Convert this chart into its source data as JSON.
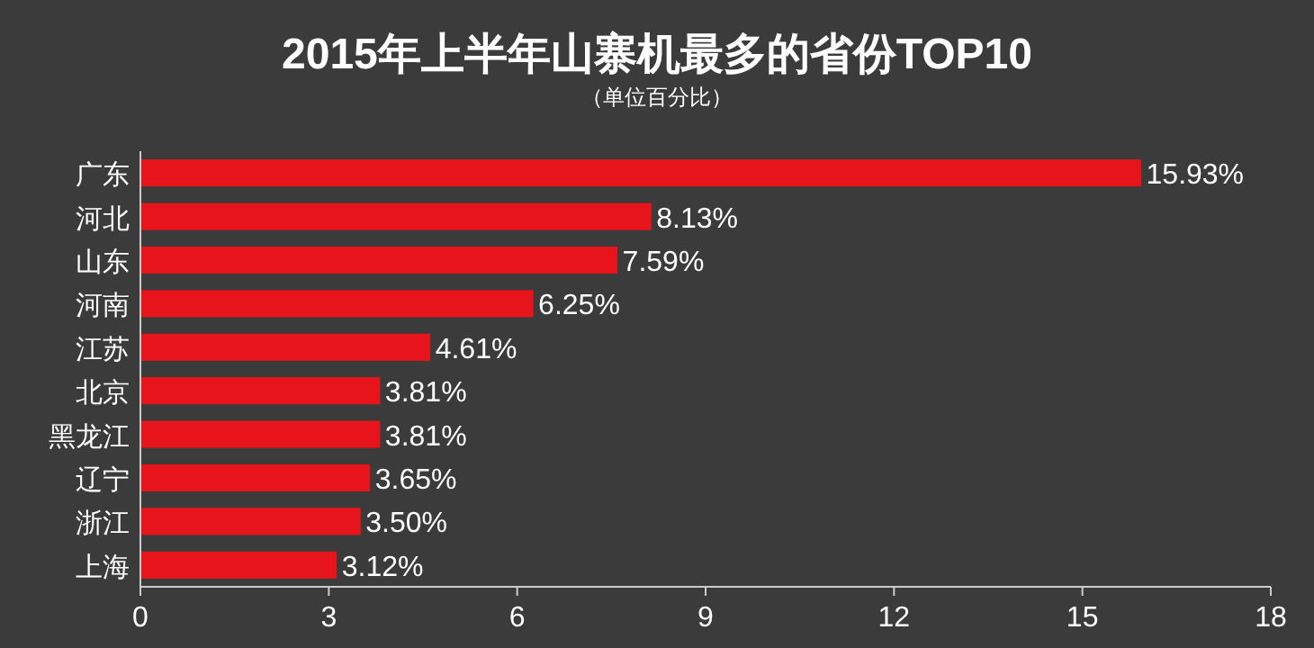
{
  "chart_data": {
    "type": "bar",
    "orientation": "horizontal",
    "title": "2015年上半年山寨机最多的省份TOP10",
    "subtitle": "（单位百分比）",
    "categories": [
      "广东",
      "河北",
      "山东",
      "河南",
      "江苏",
      "北京",
      "黑龙江",
      "辽宁",
      "浙江",
      "上海"
    ],
    "values": [
      15.93,
      8.13,
      7.59,
      6.25,
      4.61,
      3.81,
      3.81,
      3.65,
      3.5,
      3.12
    ],
    "value_labels": [
      "15.93%",
      "8.13%",
      "7.59%",
      "6.25%",
      "4.61%",
      "3.81%",
      "3.81%",
      "3.65%",
      "3.50%",
      "3.12%"
    ],
    "color": "#e8141c",
    "xlim": [
      0,
      18
    ],
    "xticks": [
      0,
      3,
      6,
      9,
      12,
      15,
      18
    ]
  }
}
